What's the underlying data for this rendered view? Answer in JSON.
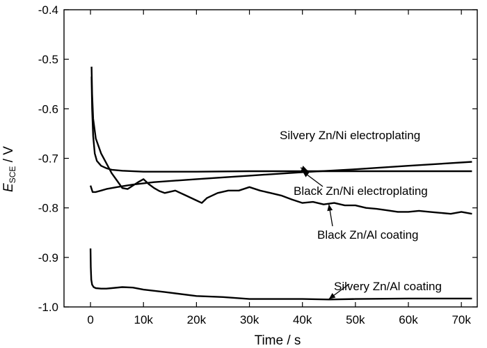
{
  "chart_data": {
    "type": "line",
    "xlabel": "Time / s",
    "ylabel": {
      "main": "E",
      "sub": "SCE",
      "unit": " / V"
    },
    "xlim": [
      -5000,
      73000
    ],
    "ylim": [
      -1.0,
      -0.4
    ],
    "xticks": [
      0,
      10000,
      20000,
      30000,
      40000,
      50000,
      60000,
      70000
    ],
    "xtick_labels": [
      "0",
      "10k",
      "20k",
      "30k",
      "40k",
      "50k",
      "60k",
      "70k"
    ],
    "yticks": [
      -1.0,
      -0.9,
      -0.8,
      -0.7,
      -0.6,
      -0.5,
      -0.4
    ],
    "ytick_labels": [
      "-1.0",
      "-0.9",
      "-0.8",
      "-0.7",
      "-0.6",
      "-0.5",
      "-0.4"
    ],
    "grid": false,
    "legend": "none",
    "series": [
      {
        "name": "Silvery Zn/Ni electroplating",
        "x": [
          0,
          400,
          1000,
          2000,
          3000,
          5000,
          8000,
          12000,
          20000,
          30000,
          40000,
          50000,
          60000,
          72000
        ],
        "y": [
          -0.755,
          -0.768,
          -0.768,
          -0.765,
          -0.762,
          -0.758,
          -0.753,
          -0.748,
          -0.742,
          -0.735,
          -0.728,
          -0.722,
          -0.715,
          -0.707
        ]
      },
      {
        "name": "Black Zn/Ni electroplating",
        "x": [
          200,
          300,
          500,
          800,
          1200,
          2000,
          3000,
          4000,
          6000,
          10000,
          20000,
          30000,
          40000,
          50000,
          60000,
          72000
        ],
        "y": [
          -0.535,
          -0.6,
          -0.655,
          -0.69,
          -0.705,
          -0.715,
          -0.72,
          -0.723,
          -0.725,
          -0.727,
          -0.727,
          -0.726,
          -0.726,
          -0.726,
          -0.726,
          -0.726
        ]
      },
      {
        "name": "Black Zn/Al coating",
        "x": [
          200,
          300,
          500,
          1000,
          2000,
          3000,
          4000,
          5000,
          6000,
          7000,
          8000,
          9000,
          10000,
          11000,
          12000,
          13000,
          14000,
          16000,
          18000,
          20000,
          21000,
          22000,
          24000,
          26000,
          28000,
          30000,
          32000,
          34000,
          36000,
          38000,
          40000,
          42000,
          44000,
          46000,
          48000,
          50000,
          52000,
          54000,
          56000,
          58000,
          60000,
          62000,
          64000,
          66000,
          68000,
          70000,
          72000
        ],
        "y": [
          -0.515,
          -0.57,
          -0.62,
          -0.66,
          -0.69,
          -0.71,
          -0.73,
          -0.745,
          -0.76,
          -0.762,
          -0.755,
          -0.748,
          -0.742,
          -0.752,
          -0.76,
          -0.766,
          -0.77,
          -0.765,
          -0.775,
          -0.785,
          -0.79,
          -0.78,
          -0.77,
          -0.765,
          -0.765,
          -0.758,
          -0.765,
          -0.77,
          -0.775,
          -0.783,
          -0.79,
          -0.788,
          -0.793,
          -0.79,
          -0.795,
          -0.795,
          -0.8,
          -0.802,
          -0.805,
          -0.808,
          -0.808,
          -0.806,
          -0.808,
          -0.81,
          -0.812,
          -0.808,
          -0.812
        ]
      },
      {
        "name": "Silvery Zn/Al coating",
        "x": [
          0,
          50,
          150,
          300,
          600,
          1000,
          2000,
          3000,
          4000,
          6000,
          8000,
          10000,
          14000,
          20000,
          25000,
          30000,
          35000,
          40000,
          45000,
          50000,
          60000,
          72000
        ],
        "y": [
          -0.882,
          -0.92,
          -0.945,
          -0.955,
          -0.96,
          -0.962,
          -0.963,
          -0.963,
          -0.962,
          -0.96,
          -0.961,
          -0.965,
          -0.97,
          -0.978,
          -0.98,
          -0.984,
          -0.984,
          -0.984,
          -0.985,
          -0.984,
          -0.983,
          -0.983
        ]
      }
    ],
    "annotations": [
      {
        "text": "Silvery Zn/Ni electroplating",
        "tip_x": 41000,
        "tip_y": -0.725
      },
      {
        "text": "Black Zn/Ni electroplating",
        "tip_x": 40000,
        "tip_y": -0.726
      },
      {
        "text": "Black Zn/Al coating",
        "tip_x": 45000,
        "tip_y": -0.793
      },
      {
        "text": "Silvery Zn/Al coating",
        "tip_x": 45000,
        "tip_y": -0.984
      }
    ]
  }
}
